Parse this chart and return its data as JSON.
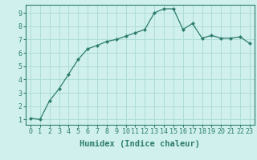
{
  "x": [
    0,
    1,
    2,
    3,
    4,
    5,
    6,
    7,
    8,
    9,
    10,
    11,
    12,
    13,
    14,
    15,
    16,
    17,
    18,
    19,
    20,
    21,
    22,
    23
  ],
  "y": [
    1.1,
    1.0,
    2.4,
    3.3,
    4.4,
    5.5,
    6.3,
    6.55,
    6.85,
    7.0,
    7.25,
    7.5,
    7.75,
    9.0,
    9.3,
    9.3,
    7.75,
    8.2,
    7.1,
    7.3,
    7.1,
    7.1,
    7.2,
    6.7
  ],
  "line_color": "#2e7d6e",
  "marker": "D",
  "marker_size": 2,
  "bg_color": "#cff0ec",
  "grid_color": "#aeddd8",
  "xlabel": "Humidex (Indice chaleur)",
  "xlim_min": -0.5,
  "xlim_max": 23.5,
  "ylim_min": 0.6,
  "ylim_max": 9.6,
  "yticks": [
    1,
    2,
    3,
    4,
    5,
    6,
    7,
    8,
    9
  ],
  "xticks": [
    0,
    1,
    2,
    3,
    4,
    5,
    6,
    7,
    8,
    9,
    10,
    11,
    12,
    13,
    14,
    15,
    16,
    17,
    18,
    19,
    20,
    21,
    22,
    23
  ],
  "tick_label_size": 6,
  "xlabel_size": 7.5
}
